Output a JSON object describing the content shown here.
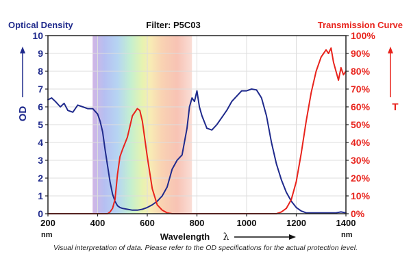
{
  "chart_data": {
    "type": "line",
    "title": "Filter: P5C03",
    "xlabel": "Wavelength",
    "xlabel_symbol": "λ",
    "x_unit": "nm",
    "ylabel_left": "OD",
    "ylabel_left_header": "Optical Density",
    "ylabel_right": "T",
    "ylabel_right_header": "Transmission Curve",
    "xlim": [
      200,
      1400
    ],
    "ylim_left": [
      0,
      10
    ],
    "ylim_right": [
      0,
      100
    ],
    "x_ticks": [
      "200",
      "400",
      "600",
      "800",
      "1000",
      "1200",
      "1400"
    ],
    "x_tick_values": [
      200,
      400,
      600,
      800,
      1000,
      1200,
      1400
    ],
    "y_ticks_left": [
      "0",
      "1",
      "2",
      "3",
      "4",
      "5",
      "6",
      "7",
      "8",
      "9",
      "10"
    ],
    "y_ticks_right": [
      "0%",
      "10%",
      "20%",
      "30%",
      "40%",
      "50%",
      "60%",
      "70%",
      "80%",
      "90%",
      "100%"
    ],
    "visible_spectrum_nm": [
      380,
      780
    ],
    "colors": {
      "od": "#1f2a8c",
      "transmission": "#e8231c",
      "grid": "#dddddd",
      "axis": "#222222"
    },
    "series": [
      {
        "name": "Optical Density",
        "axis": "left",
        "x": [
          200,
          215,
          230,
          250,
          265,
          280,
          300,
          320,
          340,
          360,
          380,
          400,
          410,
          420,
          430,
          440,
          450,
          460,
          470,
          480,
          490,
          500,
          520,
          540,
          560,
          580,
          600,
          620,
          640,
          660,
          680,
          700,
          720,
          740,
          760,
          770,
          780,
          790,
          800,
          810,
          820,
          840,
          860,
          880,
          900,
          920,
          940,
          960,
          980,
          1000,
          1020,
          1040,
          1060,
          1080,
          1100,
          1120,
          1140,
          1160,
          1180,
          1200,
          1220,
          1240,
          1260,
          1280,
          1300,
          1320,
          1340,
          1360,
          1380,
          1400
        ],
        "values": [
          6.4,
          6.5,
          6.3,
          6.0,
          6.2,
          5.8,
          5.7,
          6.1,
          6.0,
          5.9,
          5.9,
          5.6,
          5.2,
          4.6,
          3.6,
          2.7,
          1.8,
          1.1,
          0.7,
          0.45,
          0.35,
          0.3,
          0.25,
          0.2,
          0.2,
          0.25,
          0.35,
          0.5,
          0.7,
          1.0,
          1.5,
          2.5,
          3.0,
          3.3,
          4.8,
          6.0,
          6.5,
          6.3,
          6.9,
          6.0,
          5.5,
          4.8,
          4.7,
          5.0,
          5.4,
          5.8,
          6.3,
          6.6,
          6.9,
          6.9,
          7.0,
          6.95,
          6.5,
          5.5,
          4.0,
          2.8,
          1.9,
          1.2,
          0.7,
          0.35,
          0.15,
          0.05,
          0.05,
          0.05,
          0.05,
          0.05,
          0.05,
          0.05,
          0.1,
          0.05
        ]
      },
      {
        "name": "Transmission Curve",
        "axis": "right",
        "x": [
          200,
          440,
          450,
          460,
          470,
          480,
          490,
          500,
          520,
          540,
          560,
          570,
          580,
          600,
          620,
          640,
          660,
          680,
          700,
          720,
          1120,
          1140,
          1160,
          1180,
          1200,
          1220,
          1240,
          1260,
          1280,
          1300,
          1310,
          1320,
          1330,
          1340,
          1350,
          1360,
          1370,
          1380,
          1390,
          1400
        ],
        "values": [
          0,
          0,
          1,
          3,
          8,
          22,
          32,
          36,
          43,
          55,
          59,
          58,
          52,
          32,
          14,
          5,
          2,
          0.5,
          0,
          0,
          0,
          1,
          3,
          8,
          18,
          34,
          52,
          68,
          80,
          88,
          90,
          92,
          90,
          93,
          85,
          80,
          75,
          82,
          78,
          80
        ]
      }
    ],
    "caption": "Visual interpretation of data. Please refer to the OD specifications for the actual protection level."
  }
}
